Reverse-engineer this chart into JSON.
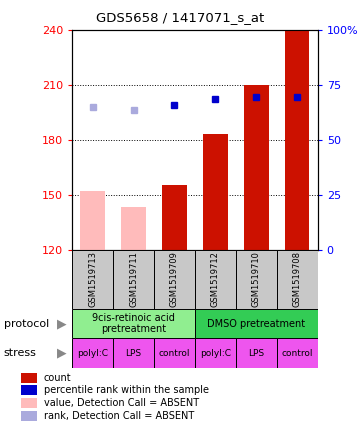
{
  "title": "GDS5658 / 1417071_s_at",
  "samples": [
    "GSM1519713",
    "GSM1519711",
    "GSM1519709",
    "GSM1519712",
    "GSM1519710",
    "GSM1519708"
  ],
  "red_bar_values": [
    152,
    143,
    155,
    183,
    210,
    240
  ],
  "red_bar_absent": [
    true,
    true,
    false,
    false,
    false,
    false
  ],
  "blue_dot_values": [
    198,
    196,
    199,
    202,
    203,
    203
  ],
  "blue_dot_absent": [
    true,
    true,
    false,
    false,
    false,
    false
  ],
  "ylim_left": [
    120,
    240
  ],
  "ylim_right": [
    0,
    100
  ],
  "yticks_left": [
    120,
    150,
    180,
    210,
    240
  ],
  "yticks_right": [
    0,
    25,
    50,
    75,
    100
  ],
  "protocol_groups": [
    {
      "label": "9cis-retinoic acid\npretreatment",
      "color": "#90ee90",
      "cols": [
        0,
        1,
        2
      ]
    },
    {
      "label": "DMSO pretreatment",
      "color": "#33cc55",
      "cols": [
        3,
        4,
        5
      ]
    }
  ],
  "stress_labels": [
    "polyI:C",
    "LPS",
    "control",
    "polyI:C",
    "LPS",
    "control"
  ],
  "stress_color": "#ee55ee",
  "sample_bg_color": "#c8c8c8",
  "bar_color_red": "#cc1100",
  "bar_color_pink": "#ffbbbb",
  "dot_color_blue": "#0000cc",
  "dot_color_lightblue": "#aaaadd",
  "legend_items": [
    {
      "color": "#cc1100",
      "label": "count"
    },
    {
      "color": "#0000cc",
      "label": "percentile rank within the sample"
    },
    {
      "color": "#ffbbbb",
      "label": "value, Detection Call = ABSENT"
    },
    {
      "color": "#aaaadd",
      "label": "rank, Detection Call = ABSENT"
    }
  ]
}
